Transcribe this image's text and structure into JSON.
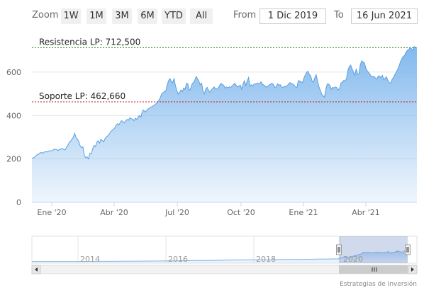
{
  "range_selector": {
    "zoom_label": "Zoom",
    "buttons": [
      "1W",
      "1M",
      "3M",
      "6M",
      "YTD",
      "All"
    ],
    "from_label": "From",
    "from_value": "1 Dic 2019",
    "to_label": "To",
    "to_value": "16 Jun 2021"
  },
  "credit": "Estrategias de Inversión",
  "chart_data": {
    "type": "area",
    "x_labels": [
      "Ene '20",
      "Abr '20",
      "Jul '20",
      "Oct '20",
      "Ene '21",
      "Abr '21"
    ],
    "y_ticks": [
      0,
      200,
      400,
      600
    ],
    "ylim": [
      0,
      730
    ],
    "series": [
      {
        "values": [
          203,
          205,
          208,
          215,
          220,
          222,
          228,
          230,
          225,
          232,
          233,
          232,
          235,
          238,
          237,
          240,
          243,
          245,
          243,
          238,
          245,
          244,
          248,
          244,
          241,
          252,
          262,
          275,
          282,
          290,
          300,
          318,
          298,
          292,
          278,
          260,
          252,
          255,
          215,
          205,
          210,
          200,
          226,
          222,
          246,
          262,
          256,
          276,
          284,
          272,
          290,
          285,
          278,
          294,
          302,
          306,
          314,
          325,
          331,
          336,
          342,
          355,
          362,
          356,
          368,
          376,
          372,
          366,
          375,
          382,
          378,
          390,
          385,
          384,
          376,
          388,
          382,
          394,
          400,
          392,
          420,
          425,
          416,
          422,
          430,
          433,
          438,
          440,
          445,
          448,
          455,
          462,
          470,
          482,
          498,
          505,
          510,
          512,
          540,
          560,
          570,
          558,
          550,
          570,
          538,
          515,
          498,
          506,
          518,
          510,
          526,
          520,
          548,
          546,
          516,
          523,
          544,
          552,
          562,
          580,
          570,
          558,
          542,
          548,
          512,
          500,
          522,
          530,
          515,
          507,
          518,
          525,
          532,
          522,
          522,
          527,
          538,
          548,
          542,
          540,
          525,
          532,
          528,
          532,
          530,
          535,
          542,
          548,
          540,
          532,
          535,
          540,
          522,
          545,
          560,
          538,
          558,
          575,
          535,
          542,
          535,
          545,
          546,
          548,
          548,
          545,
          555,
          545,
          540,
          535,
          530,
          536,
          540,
          545,
          548,
          542,
          530,
          532,
          546,
          540,
          542,
          532,
          528,
          535,
          532,
          538,
          545,
          552,
          548,
          545,
          540,
          532,
          528,
          560,
          560,
          555,
          550,
          570,
          586,
          598,
          604,
          590,
          583,
          560,
          553,
          574,
          588,
          558,
          533,
          516,
          498,
          490,
          485,
          520,
          545,
          545,
          538,
          520,
          530,
          527,
          532,
          528,
          518,
          525,
          550,
          553,
          562,
          560,
          570,
          608,
          625,
          632,
          616,
          600,
          585,
          615,
          590,
          592,
          635,
          652,
          646,
          642,
          618,
          605,
          598,
          590,
          580,
          578,
          580,
          572,
          568,
          582,
          580,
          575,
          585,
          565,
          572,
          578,
          560,
          552,
          548,
          566,
          575,
          588,
          600,
          612,
          626,
          646,
          660,
          672,
          676,
          690,
          700,
          704,
          712,
          708,
          700,
          718,
          712,
          712
        ]
      }
    ],
    "annotations": [
      {
        "label": "Resistencia LP: 712,500",
        "value": 712.5,
        "color": "#2e8b2e"
      },
      {
        "label": "Soporte LP: 462,660",
        "value": 462.66,
        "color": "#b22222"
      }
    ],
    "navigator": {
      "x_labels": [
        "2014",
        "2016",
        "2018",
        "2020"
      ]
    }
  }
}
